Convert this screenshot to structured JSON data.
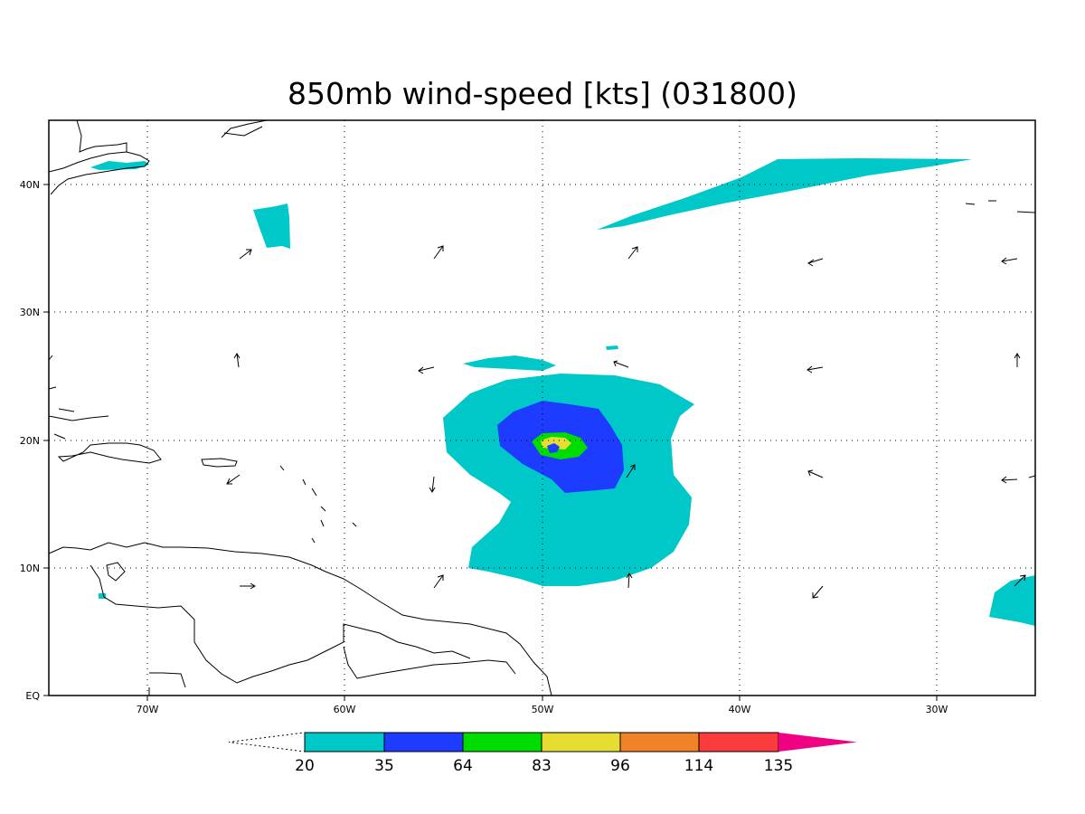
{
  "title": "850mb wind-speed [kts] (031800)",
  "x_ticks": [
    "70W",
    "60W",
    "50W",
    "40W",
    "30W"
  ],
  "y_ticks": [
    "EQ",
    "10N",
    "20N",
    "30N",
    "40N"
  ],
  "colorbar": {
    "labels": [
      "20",
      "35",
      "64",
      "83",
      "96",
      "114",
      "135"
    ],
    "colors": [
      "#00c8c8",
      "#1e3cff",
      "#00dc00",
      "#e6dc32",
      "#f08228",
      "#fa3c3c",
      "#f00082"
    ]
  },
  "map_data": {
    "type": "contour_fill",
    "variable": "850mb wind-speed",
    "units": "kts",
    "time_code": "031800",
    "lon_range": [
      -75,
      -25
    ],
    "lat_range": [
      0,
      45
    ],
    "levels": [
      20,
      35,
      64,
      83,
      96,
      114,
      135
    ]
  }
}
